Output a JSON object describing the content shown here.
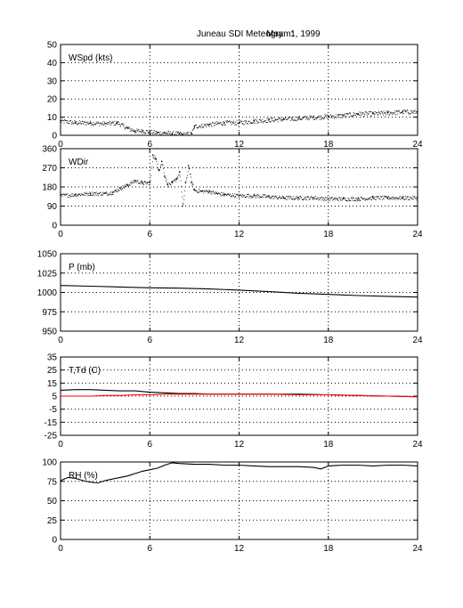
{
  "title": {
    "station": "Juneau SDI Meteogram:",
    "date": "May   1, 1999"
  },
  "chart_data": [
    {
      "type": "scatter",
      "label": "WSpd (kts)",
      "xlim": [
        0,
        24
      ],
      "ylim": [
        0,
        50
      ],
      "xticks": [
        0,
        6,
        12,
        18,
        24
      ],
      "yticks": [
        0,
        10,
        20,
        30,
        40,
        50
      ],
      "grid": true,
      "series": [
        {
          "color": "#000000",
          "marker": "dot",
          "x": [
            0,
            1,
            2,
            3,
            3.8,
            4.5,
            5,
            5.5,
            6,
            6.5,
            7,
            7.5,
            8,
            8.2,
            8.8,
            9,
            10,
            11,
            12,
            13,
            14,
            15,
            16,
            17,
            18,
            19,
            20,
            21,
            22,
            23,
            24
          ],
          "y": [
            8,
            7,
            7,
            6.5,
            7,
            4,
            2.5,
            2.5,
            2,
            1.5,
            1.5,
            1,
            1,
            0.5,
            1,
            5,
            6,
            7,
            7,
            8,
            8.5,
            9,
            9.5,
            10,
            10.5,
            11,
            12,
            12,
            12.5,
            13,
            13
          ]
        }
      ]
    },
    {
      "type": "scatter",
      "label": "WDir",
      "xlim": [
        0,
        24
      ],
      "ylim": [
        0,
        360
      ],
      "xticks": [
        0,
        6,
        12,
        18,
        24
      ],
      "yticks": [
        0,
        90,
        180,
        270,
        360
      ],
      "grid": true,
      "series": [
        {
          "color": "#000000",
          "marker": "dot",
          "x": [
            0,
            1,
            2,
            3,
            3.5,
            4,
            4.5,
            5,
            5.5,
            6,
            6.2,
            6.4,
            6.6,
            6.8,
            7,
            7.2,
            7.5,
            7.8,
            8,
            8.2,
            8.4,
            8.6,
            8.8,
            9,
            9.5,
            10,
            10.5,
            11,
            12,
            13,
            14,
            15,
            16,
            17,
            18,
            19,
            20,
            21,
            22,
            23,
            24
          ],
          "y": [
            140,
            145,
            150,
            150,
            155,
            175,
            190,
            210,
            200,
            200,
            330,
            310,
            260,
            300,
            230,
            190,
            200,
            220,
            250,
            90,
            200,
            280,
            200,
            165,
            160,
            160,
            150,
            145,
            140,
            140,
            135,
            130,
            130,
            130,
            125,
            125,
            125,
            130,
            130,
            130,
            130
          ]
        }
      ]
    },
    {
      "type": "line",
      "label": "P (mb)",
      "xlim": [
        0,
        24
      ],
      "ylim": [
        950,
        1050
      ],
      "xticks": [
        0,
        6,
        12,
        18,
        24
      ],
      "yticks": [
        950,
        975,
        1000,
        1025,
        1050
      ],
      "grid": true,
      "series": [
        {
          "color": "#000000",
          "x": [
            0,
            2,
            4,
            6,
            8,
            10,
            12,
            14,
            16,
            18,
            20,
            22,
            24
          ],
          "y": [
            1009,
            1008,
            1007,
            1006,
            1005.5,
            1004.5,
            1003,
            1001,
            999,
            997.5,
            996,
            995,
            994
          ]
        }
      ]
    },
    {
      "type": "line",
      "label": "T,Td (C)",
      "xlim": [
        0,
        24
      ],
      "ylim": [
        -25,
        35
      ],
      "xticks": [
        0,
        6,
        12,
        18,
        24
      ],
      "yticks": [
        -25,
        -15,
        -5,
        5,
        15,
        25,
        35
      ],
      "grid": true,
      "series": [
        {
          "color": "#000000",
          "x": [
            0,
            1,
            2,
            3,
            4,
            5,
            6,
            7,
            8,
            9,
            10,
            12,
            14,
            16,
            18,
            20,
            22,
            24
          ],
          "y": [
            9.5,
            10,
            10,
            9.5,
            9,
            9,
            8,
            7.5,
            7,
            7,
            6.5,
            6.5,
            6.5,
            6.5,
            6,
            5.5,
            5,
            4.5
          ]
        },
        {
          "color": "#ff0000",
          "x": [
            0,
            1,
            2,
            3,
            4,
            5,
            6,
            7,
            8,
            9,
            10,
            12,
            14,
            16,
            18,
            20,
            22,
            24
          ],
          "y": [
            5,
            5,
            5,
            5.5,
            5.5,
            6,
            6,
            6.5,
            6.5,
            6.5,
            6.5,
            6.5,
            6.5,
            6,
            6,
            5.5,
            5,
            4.5
          ]
        }
      ]
    },
    {
      "type": "line",
      "label": "RH (%)",
      "xlim": [
        0,
        24
      ],
      "ylim": [
        0,
        100
      ],
      "xticks": [
        0,
        6,
        12,
        18,
        24
      ],
      "yticks": [
        0,
        25,
        50,
        75,
        100
      ],
      "grid": true,
      "series": [
        {
          "color": "#000000",
          "x": [
            0,
            0.5,
            1,
            1.5,
            2,
            2.5,
            3,
            3.5,
            4,
            4.5,
            5,
            5.5,
            6,
            6.5,
            7,
            7.5,
            8,
            9,
            10,
            11,
            12,
            13,
            14,
            15,
            16,
            17,
            17.5,
            18,
            19,
            20,
            21,
            22,
            23,
            24
          ],
          "y": [
            76,
            80,
            79,
            76,
            74,
            73,
            76,
            78,
            80,
            82,
            85,
            88,
            90,
            92,
            96,
            99,
            98,
            97,
            97,
            96,
            96,
            95,
            94,
            94,
            94,
            93,
            91,
            95,
            96,
            96,
            95,
            96,
            96,
            95
          ]
        }
      ]
    }
  ]
}
